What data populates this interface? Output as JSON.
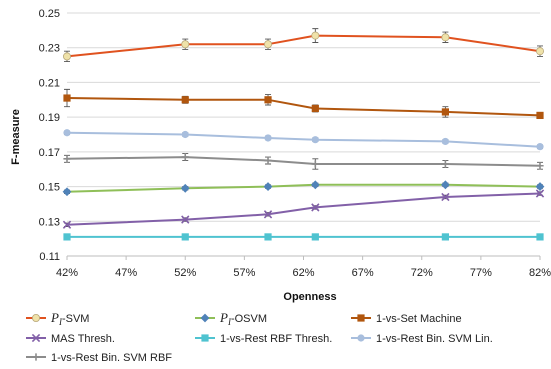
{
  "chart_data": {
    "type": "line",
    "title": "",
    "xlabel": "Openness",
    "ylabel": "F-measure",
    "x": [
      42,
      52,
      59,
      63,
      74,
      82
    ],
    "x_ticks": [
      "42%",
      "47%",
      "52%",
      "57%",
      "62%",
      "67%",
      "72%",
      "77%",
      "82%"
    ],
    "x_tick_values": [
      42,
      47,
      52,
      57,
      62,
      67,
      72,
      77,
      82
    ],
    "xlim": [
      42,
      82
    ],
    "y_ticks": [
      "0.11",
      "0.13",
      "0.15",
      "0.17",
      "0.19",
      "0.21",
      "0.23",
      "0.25"
    ],
    "y_tick_values": [
      0.11,
      0.13,
      0.15,
      0.17,
      0.19,
      0.21,
      0.23,
      0.25
    ],
    "ylim": [
      0.11,
      0.25
    ],
    "grid": "horizontal",
    "legend_position": "bottom",
    "series": [
      {
        "name": "PI-SVM",
        "label_main": "P",
        "label_sub": "I",
        "label_rest": "-SVM",
        "color": "#e0521f",
        "marker": "circle",
        "marker_color": "#efe2a9",
        "values": [
          0.225,
          0.232,
          0.232,
          0.237,
          0.236,
          0.228
        ],
        "errors": [
          0.003,
          0.003,
          0.003,
          0.004,
          0.003,
          0.003
        ]
      },
      {
        "name": "PI-OSVM",
        "label_main": "P",
        "label_sub": "I",
        "label_rest": "-OSVM",
        "color": "#8fbf58",
        "marker": "diamond",
        "marker_color": "#4f82b8",
        "values": [
          0.147,
          0.149,
          0.15,
          0.151,
          0.151,
          0.15
        ],
        "errors": [
          0.001,
          0.001,
          0.001,
          0.001,
          0.001,
          0.001
        ]
      },
      {
        "name": "1-vs-Set Machine",
        "color": "#b1560e",
        "marker": "square",
        "marker_color": "#b1560e",
        "values": [
          0.201,
          0.2,
          0.2,
          0.195,
          0.193,
          0.191
        ],
        "errors": [
          0.005,
          0.002,
          0.003,
          0.002,
          0.003,
          0.001
        ]
      },
      {
        "name": "MAS Thresh.",
        "color": "#8260a8",
        "marker": "cross",
        "marker_color": "#8260a8",
        "values": [
          0.128,
          0.131,
          0.134,
          0.138,
          0.144,
          0.146
        ],
        "errors": [
          0.001,
          0.001,
          0.001,
          0.001,
          0.001,
          0.001
        ]
      },
      {
        "name": "1-vs-Rest RBF Thresh.",
        "color": "#4fc3d0",
        "marker": "square",
        "marker_color": "#4fc3d0",
        "values": [
          0.121,
          0.121,
          0.121,
          0.121,
          0.121,
          0.121
        ],
        "errors": [
          0.0,
          0.0,
          0.0,
          0.0,
          0.0,
          0.0
        ]
      },
      {
        "name": "1-vs-Rest Bin. SVM Lin.",
        "color": "#a8bedd",
        "marker": "circle",
        "marker_color": "#a8bedd",
        "values": [
          0.181,
          0.18,
          0.178,
          0.177,
          0.176,
          0.173
        ],
        "errors": [
          0.001,
          0.001,
          0.001,
          0.001,
          0.001,
          0.001
        ]
      },
      {
        "name": "1-vs-Rest Bin. SVM RBF",
        "color": "#8c8c8c",
        "marker": "plus",
        "marker_color": "#8c8c8c",
        "values": [
          0.166,
          0.167,
          0.165,
          0.163,
          0.163,
          0.162
        ],
        "errors": [
          0.002,
          0.002,
          0.002,
          0.003,
          0.002,
          0.002
        ]
      }
    ]
  }
}
